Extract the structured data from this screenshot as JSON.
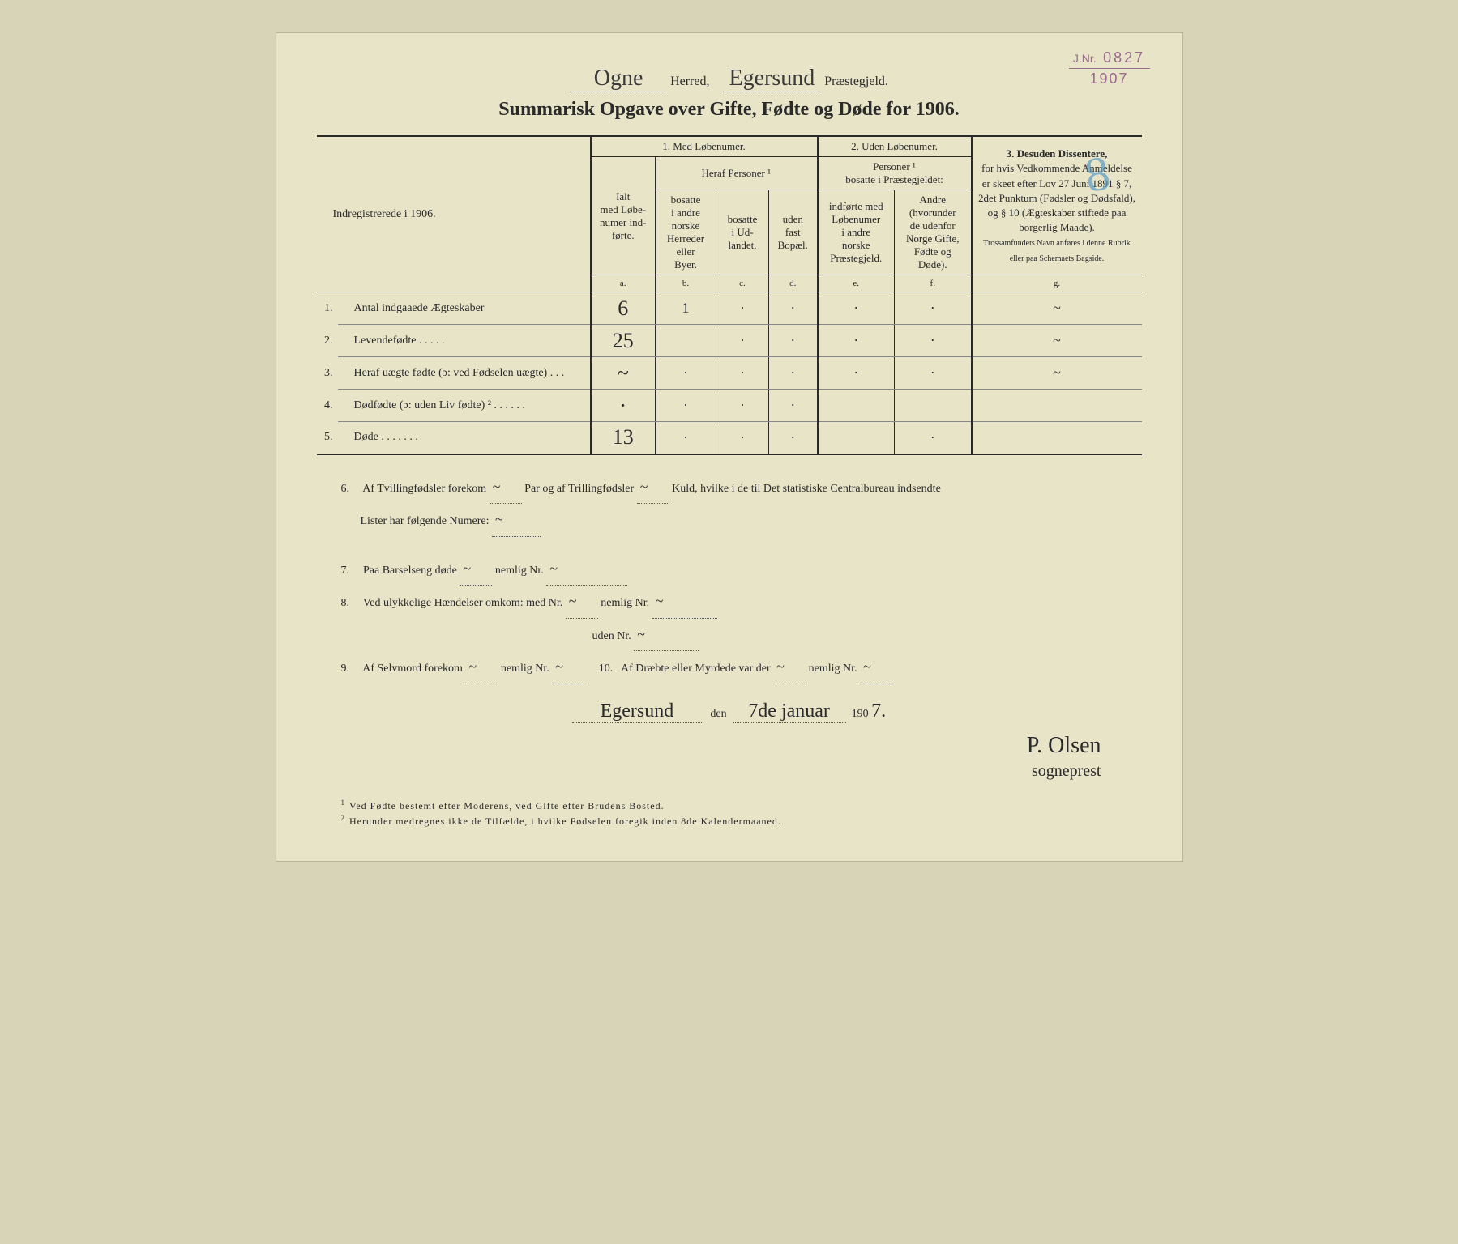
{
  "stamp": {
    "label": "J.Nr.",
    "number": "0827",
    "year": "1907"
  },
  "header": {
    "herred_value": "Ogne",
    "herred_label": "Herred,",
    "praestegjeld_value": "Egersund",
    "praestegjeld_label": "Præstegjeld."
  },
  "title": "Summarisk Opgave over Gifte, Fødte og Døde for 1906.",
  "blue_mark": "8",
  "table": {
    "left_header": "Indregistrerede i 1906.",
    "group1_title": "1.  Med  Løbenumer.",
    "group1_ialt": "Ialt\nmed Løbe-\nnumer ind-\nførte.",
    "group1_heraf": "Heraf Personer ¹",
    "col_b": "bosatte\ni andre\nnorske\nHerreder\neller\nByer.",
    "col_c": "bosatte\ni Ud-\nlandet.",
    "col_d": "uden\nfast\nBopæl.",
    "group2_title": "2. Uden Løbenumer.",
    "group2_sub": "Personer ¹\nbosatte i Præstegjeldet:",
    "col_e": "indførte med\nLøbenumer\ni andre\nnorske\nPræstegjeld.",
    "col_f": "Andre\n(hvorunder\nde udenfor\nNorge Gifte,\nFødte og\nDøde).",
    "group3_title": "3.  Desuden  Dissentere,",
    "group3_body": "for hvis Vedkommende Anmeldelse er skeet efter Lov 27 Juni 1891 § 7, 2det Punktum (Fødsler og Dødsfald), og § 10 (Ægteskaber stiftede paa borgerlig Maade).",
    "group3_small": "Trossamfundets Navn anføres i denne Rubrik eller paa Schemaets Bagside.",
    "letters": [
      "a.",
      "b.",
      "c.",
      "d.",
      "e.",
      "f.",
      "g."
    ],
    "rows": [
      {
        "n": "1.",
        "label": "Antal indgaaede Ægteskaber",
        "a": "6",
        "b": "1",
        "c": "·",
        "d": "·",
        "e": "·",
        "f": "·",
        "g": "~"
      },
      {
        "n": "2.",
        "label": "Levendefødte   .   .   .   .   .",
        "a": "25",
        "b": "",
        "c": "·",
        "d": "·",
        "e": "·",
        "f": "·",
        "g": "~"
      },
      {
        "n": "3.",
        "label": "Heraf uægte fødte (ɔ: ved Fødselen uægte)  .   .   .",
        "a": "~",
        "b": "·",
        "c": "·",
        "d": "·",
        "e": "·",
        "f": "·",
        "g": "~"
      },
      {
        "n": "4.",
        "label": "Dødfødte (ɔ:  uden  Liv fødte) ²  .   .   .   .   .   .",
        "a": "·",
        "b": "·",
        "c": "·",
        "d": "·",
        "e": "",
        "f": "",
        "g": ""
      },
      {
        "n": "5.",
        "label": "Døde  .   .   .   .   .   .   .",
        "a": "13",
        "b": "·",
        "c": "·",
        "d": "·",
        "e": "",
        "f": "·",
        "g": ""
      }
    ]
  },
  "lines": {
    "l6a": "Af Tvillingfødsler forekom",
    "l6b": "Par og af Trillingfødsler",
    "l6c": "Kuld, hvilke i de til Det statistiske Centralbureau indsendte",
    "l6d": "Lister har følgende Numere:",
    "l7": "Paa Barselseng døde",
    "l7b": "nemlig Nr.",
    "l8": "Ved ulykkelige Hændelser omkom:  med Nr.",
    "l8b": "nemlig Nr.",
    "l8c": "uden Nr.",
    "l9": "Af Selvmord forekom",
    "l9b": "nemlig Nr.",
    "l10": "Af Dræbte eller Myrdede var der",
    "l10b": "nemlig Nr.",
    "tilde": "~"
  },
  "sig": {
    "place": "Egersund",
    "den": "den",
    "date": "7de januar",
    "year_prefix": "190",
    "year_end": "7.",
    "name": "P. Olsen",
    "title": "sogneprest"
  },
  "footnotes": {
    "f1": "Ved  Fødte  bestemt efter  Moderens,  ved  Gifte  efter  Brudens Bosted.",
    "f2": "Herunder medregnes  ikke  de Tilfælde, i hvilke Fødselen foregik  inden  8de Kalendermaaned."
  }
}
